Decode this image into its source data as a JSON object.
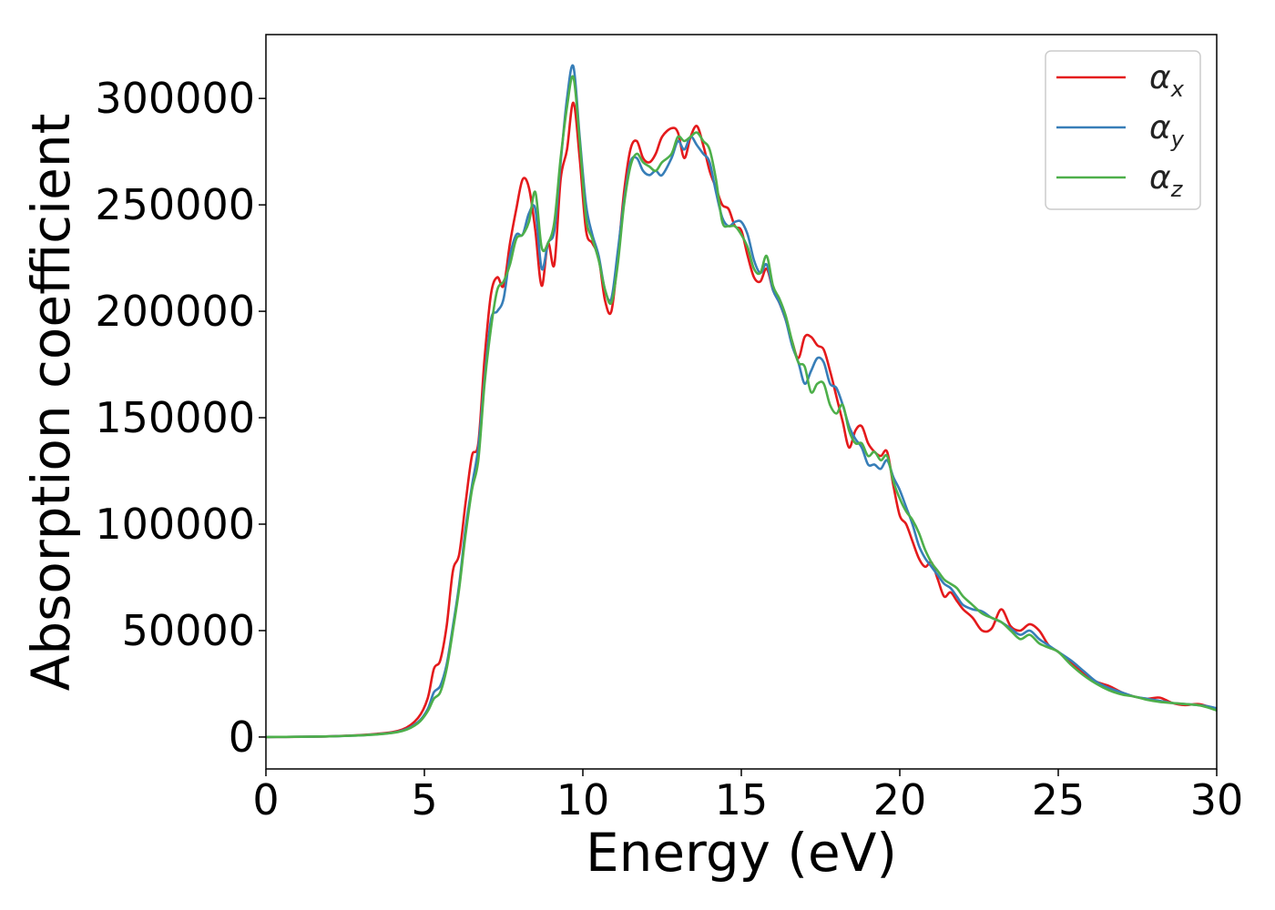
{
  "chart_data": {
    "type": "line",
    "title": "",
    "xlabel": "Energy (eV)",
    "ylabel": "Absorption coefficient",
    "xlim": [
      0,
      30
    ],
    "ylim": [
      -15000,
      330000
    ],
    "xticks": [
      0,
      5,
      10,
      15,
      20,
      25,
      30
    ],
    "yticks": [
      0,
      50000,
      100000,
      150000,
      200000,
      250000,
      300000
    ],
    "grid": false,
    "legend_position": "top-right",
    "series": [
      {
        "name": "α_x",
        "label_main": "α",
        "label_sub": "x",
        "color": "#e41a1c",
        "x": [
          0,
          2,
          3.5,
          4.3,
          4.8,
          5.1,
          5.3,
          5.5,
          5.7,
          5.9,
          6.1,
          6.3,
          6.5,
          6.7,
          6.9,
          7.1,
          7.3,
          7.5,
          7.7,
          7.9,
          8.1,
          8.3,
          8.5,
          8.7,
          8.9,
          9.1,
          9.3,
          9.5,
          9.7,
          9.9,
          10.1,
          10.3,
          10.5,
          10.7,
          10.9,
          11.1,
          11.3,
          11.5,
          11.7,
          11.9,
          12.1,
          12.3,
          12.5,
          12.8,
          13.0,
          13.2,
          13.4,
          13.6,
          13.8,
          14.0,
          14.2,
          14.4,
          14.6,
          14.8,
          15.0,
          15.2,
          15.4,
          15.6,
          15.8,
          16.0,
          16.2,
          16.4,
          16.6,
          16.8,
          17.0,
          17.2,
          17.4,
          17.6,
          17.8,
          18.0,
          18.2,
          18.4,
          18.6,
          18.8,
          19.0,
          19.2,
          19.4,
          19.6,
          19.8,
          20.0,
          20.2,
          20.4,
          20.6,
          20.8,
          21.0,
          21.2,
          21.4,
          21.6,
          21.8,
          22.0,
          22.3,
          22.6,
          22.9,
          23.2,
          23.5,
          23.8,
          24.1,
          24.4,
          24.7,
          25.0,
          25.4,
          25.8,
          26.2,
          26.6,
          27.0,
          27.4,
          27.8,
          28.2,
          28.6,
          29.0,
          29.4,
          29.7,
          30
        ],
        "y": [
          0,
          300,
          1500,
          3500,
          9000,
          18000,
          32000,
          36000,
          52000,
          78000,
          86000,
          110000,
          132000,
          138000,
          178000,
          208000,
          216000,
          212000,
          232000,
          248000,
          262000,
          258000,
          238000,
          212000,
          232000,
          222000,
          262000,
          276000,
          298000,
          272000,
          238000,
          232000,
          225000,
          205000,
          200000,
          225000,
          256000,
          276000,
          280000,
          272000,
          270000,
          274000,
          282000,
          286000,
          284000,
          272000,
          282000,
          287000,
          278000,
          266000,
          258000,
          250000,
          248000,
          240000,
          238000,
          226000,
          216000,
          214000,
          220000,
          210000,
          204000,
          196000,
          186000,
          178000,
          188000,
          188000,
          184000,
          182000,
          172000,
          160000,
          148000,
          136000,
          144000,
          146000,
          138000,
          134000,
          132000,
          134000,
          118000,
          104000,
          100000,
          92000,
          84000,
          80000,
          82000,
          74000,
          66000,
          68000,
          64000,
          60000,
          56000,
          50000,
          51000,
          60000,
          52000,
          50000,
          53000,
          50000,
          43000,
          40000,
          35000,
          30000,
          26000,
          24000,
          21000,
          19000,
          18000,
          18500,
          16000,
          15000,
          15500,
          14500,
          13000
        ]
      },
      {
        "name": "α_y",
        "label_main": "α",
        "label_sub": "y",
        "color": "#377eb8",
        "x": [
          0,
          2,
          3.5,
          4.3,
          4.8,
          5.1,
          5.3,
          5.5,
          5.7,
          5.9,
          6.1,
          6.3,
          6.5,
          6.7,
          6.9,
          7.1,
          7.3,
          7.5,
          7.7,
          7.9,
          8.1,
          8.3,
          8.5,
          8.7,
          8.9,
          9.1,
          9.3,
          9.5,
          9.7,
          9.9,
          10.1,
          10.3,
          10.5,
          10.7,
          10.9,
          11.1,
          11.3,
          11.5,
          11.7,
          11.9,
          12.1,
          12.3,
          12.5,
          12.8,
          13.0,
          13.2,
          13.4,
          13.6,
          13.8,
          14.0,
          14.2,
          14.4,
          14.6,
          14.8,
          15.0,
          15.2,
          15.4,
          15.6,
          15.8,
          16.0,
          16.2,
          16.4,
          16.6,
          16.8,
          17.0,
          17.2,
          17.4,
          17.6,
          17.8,
          18.0,
          18.2,
          18.4,
          18.6,
          18.8,
          19.0,
          19.2,
          19.4,
          19.6,
          19.8,
          20.0,
          20.2,
          20.4,
          20.6,
          20.8,
          21.0,
          21.2,
          21.4,
          21.6,
          21.8,
          22.0,
          22.3,
          22.6,
          22.9,
          23.2,
          23.5,
          23.8,
          24.1,
          24.4,
          24.7,
          25.0,
          25.4,
          25.8,
          26.2,
          26.6,
          27.0,
          27.4,
          27.8,
          28.2,
          28.6,
          29.0,
          29.4,
          29.7,
          30
        ],
        "y": [
          0,
          300,
          1300,
          3000,
          7000,
          13000,
          21000,
          24000,
          34000,
          52000,
          72000,
          98000,
          118000,
          136000,
          168000,
          196000,
          200000,
          206000,
          226000,
          236000,
          236000,
          246000,
          248000,
          220000,
          232000,
          238000,
          270000,
          300000,
          315000,
          282000,
          250000,
          236000,
          226000,
          210000,
          206000,
          228000,
          252000,
          270000,
          272000,
          266000,
          264000,
          266000,
          264000,
          272000,
          280000,
          276000,
          282000,
          278000,
          274000,
          270000,
          256000,
          244000,
          240000,
          242000,
          242000,
          236000,
          224000,
          218000,
          222000,
          210000,
          204000,
          196000,
          184000,
          176000,
          166000,
          172000,
          178000,
          176000,
          166000,
          164000,
          156000,
          146000,
          140000,
          136000,
          128000,
          128000,
          126000,
          130000,
          122000,
          116000,
          108000,
          100000,
          90000,
          84000,
          80000,
          76000,
          72000,
          70000,
          66000,
          62000,
          60000,
          59000,
          56000,
          54000,
          51000,
          48000,
          50000,
          46000,
          43000,
          40000,
          36000,
          31000,
          26000,
          23000,
          21000,
          19000,
          18000,
          17000,
          16000,
          15500,
          15000,
          14500,
          13500
        ]
      },
      {
        "name": "α_z",
        "label_main": "α",
        "label_sub": "z",
        "color": "#4daf4a",
        "x": [
          0,
          2,
          3.5,
          4.3,
          4.8,
          5.1,
          5.3,
          5.5,
          5.7,
          5.9,
          6.1,
          6.3,
          6.5,
          6.7,
          6.9,
          7.1,
          7.3,
          7.5,
          7.7,
          7.9,
          8.1,
          8.3,
          8.5,
          8.7,
          8.9,
          9.1,
          9.3,
          9.5,
          9.7,
          9.9,
          10.1,
          10.3,
          10.5,
          10.7,
          10.9,
          11.1,
          11.3,
          11.5,
          11.7,
          11.9,
          12.1,
          12.3,
          12.5,
          12.8,
          13.0,
          13.2,
          13.4,
          13.6,
          13.8,
          14.0,
          14.2,
          14.4,
          14.6,
          14.8,
          15.0,
          15.2,
          15.4,
          15.6,
          15.8,
          16.0,
          16.2,
          16.4,
          16.6,
          16.8,
          17.0,
          17.2,
          17.4,
          17.6,
          17.8,
          18.0,
          18.2,
          18.4,
          18.6,
          18.8,
          19.0,
          19.2,
          19.4,
          19.6,
          19.8,
          20.0,
          20.2,
          20.4,
          20.6,
          20.8,
          21.0,
          21.2,
          21.4,
          21.6,
          21.8,
          22.0,
          22.3,
          22.6,
          22.9,
          23.2,
          23.5,
          23.8,
          24.1,
          24.4,
          24.7,
          25.0,
          25.4,
          25.8,
          26.2,
          26.6,
          27.0,
          27.4,
          27.8,
          28.2,
          28.6,
          29.0,
          29.4,
          29.7,
          30
        ],
        "y": [
          0,
          300,
          1200,
          2800,
          6500,
          12000,
          18000,
          21000,
          32000,
          50000,
          70000,
          95000,
          116000,
          130000,
          166000,
          192000,
          210000,
          214000,
          222000,
          234000,
          236000,
          242000,
          256000,
          230000,
          232000,
          242000,
          272000,
          296000,
          310000,
          280000,
          244000,
          234000,
          224000,
          210000,
          204000,
          222000,
          250000,
          268000,
          274000,
          270000,
          268000,
          266000,
          270000,
          274000,
          282000,
          280000,
          282000,
          284000,
          280000,
          276000,
          262000,
          242000,
          240000,
          240000,
          236000,
          230000,
          220000,
          218000,
          226000,
          212000,
          206000,
          198000,
          186000,
          176000,
          174000,
          162000,
          166000,
          166000,
          156000,
          152000,
          156000,
          144000,
          138000,
          138000,
          132000,
          134000,
          130000,
          132000,
          120000,
          112000,
          106000,
          102000,
          96000,
          88000,
          82000,
          78000,
          74000,
          72000,
          70000,
          66000,
          62000,
          58000,
          56000,
          54000,
          50000,
          46000,
          48000,
          44000,
          42000,
          40000,
          34000,
          29000,
          25000,
          22000,
          20000,
          19000,
          17500,
          16500,
          16000,
          15500,
          15000,
          14000,
          12500
        ]
      }
    ]
  }
}
